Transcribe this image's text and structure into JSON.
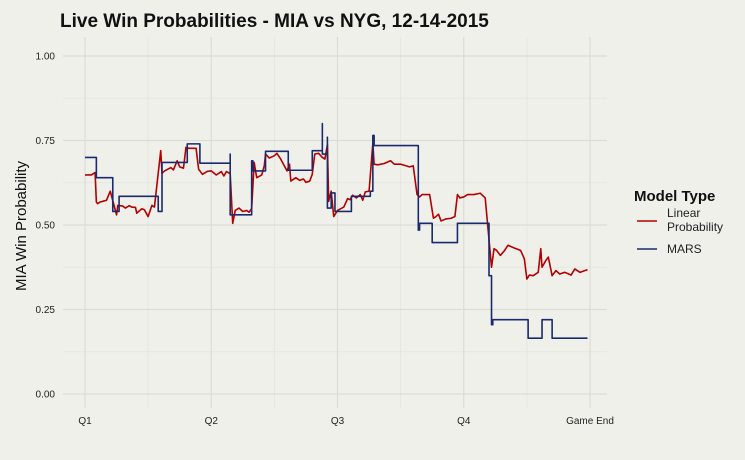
{
  "chart_data": {
    "type": "line",
    "title": "Live Win Probabilities - MIA vs NYG, 12-14-2015",
    "xlabel": "",
    "ylabel": "MIA Win Probability",
    "xlim": [
      0,
      4
    ],
    "ylim": [
      0,
      1
    ],
    "x_ticks": [
      {
        "value": 0,
        "label": "Q1"
      },
      {
        "value": 1,
        "label": "Q2"
      },
      {
        "value": 2,
        "label": "Q3"
      },
      {
        "value": 3,
        "label": "Q4"
      },
      {
        "value": 4,
        "label": "Game End"
      }
    ],
    "y_ticks": [
      {
        "value": 0,
        "label": "0.00"
      },
      {
        "value": 0.25,
        "label": "0.25"
      },
      {
        "value": 0.5,
        "label": "0.50"
      },
      {
        "value": 0.75,
        "label": "0.75"
      },
      {
        "value": 1,
        "label": "1.00"
      }
    ],
    "grid": true,
    "legend": {
      "title": "Model Type",
      "position": "right"
    },
    "series": [
      {
        "name": "Linear Probability",
        "color": "#b30000",
        "step": false,
        "points": [
          [
            0,
            0.648
          ],
          [
            0.05,
            0.648
          ],
          [
            0.08,
            0.655
          ],
          [
            0.09,
            0.568
          ],
          [
            0.1,
            0.563
          ],
          [
            0.12,
            0.568
          ],
          [
            0.17,
            0.573
          ],
          [
            0.2,
            0.6
          ],
          [
            0.25,
            0.53
          ],
          [
            0.26,
            0.558
          ],
          [
            0.3,
            0.556
          ],
          [
            0.32,
            0.55
          ],
          [
            0.35,
            0.557
          ],
          [
            0.37,
            0.553
          ],
          [
            0.4,
            0.552
          ],
          [
            0.41,
            0.535
          ],
          [
            0.45,
            0.548
          ],
          [
            0.47,
            0.545
          ],
          [
            0.5,
            0.525
          ],
          [
            0.53,
            0.558
          ],
          [
            0.55,
            0.553
          ],
          [
            0.6,
            0.72
          ],
          [
            0.61,
            0.653
          ],
          [
            0.63,
            0.66
          ],
          [
            0.68,
            0.67
          ],
          [
            0.7,
            0.663
          ],
          [
            0.73,
            0.69
          ],
          [
            0.75,
            0.672
          ],
          [
            0.78,
            0.668
          ],
          [
            0.8,
            0.73
          ],
          [
            0.82,
            0.727
          ],
          [
            0.88,
            0.727
          ],
          [
            0.9,
            0.665
          ],
          [
            0.93,
            0.65
          ],
          [
            0.97,
            0.659
          ],
          [
            1.0,
            0.66
          ],
          [
            1.04,
            0.648
          ],
          [
            1.08,
            0.658
          ],
          [
            1.1,
            0.645
          ],
          [
            1.12,
            0.658
          ],
          [
            1.15,
            0.652
          ],
          [
            1.17,
            0.505
          ],
          [
            1.19,
            0.543
          ],
          [
            1.22,
            0.55
          ],
          [
            1.25,
            0.54
          ],
          [
            1.28,
            0.543
          ],
          [
            1.3,
            0.538
          ],
          [
            1.32,
            0.548
          ],
          [
            1.34,
            0.685
          ],
          [
            1.36,
            0.64
          ],
          [
            1.4,
            0.648
          ],
          [
            1.42,
            0.675
          ],
          [
            1.43,
            0.71
          ],
          [
            1.46,
            0.698
          ],
          [
            1.5,
            0.705
          ],
          [
            1.52,
            0.712
          ],
          [
            1.55,
            0.695
          ],
          [
            1.6,
            0.66
          ],
          [
            1.62,
            0.68
          ],
          [
            1.63,
            0.63
          ],
          [
            1.67,
            0.64
          ],
          [
            1.7,
            0.632
          ],
          [
            1.73,
            0.636
          ],
          [
            1.75,
            0.626
          ],
          [
            1.78,
            0.63
          ],
          [
            1.8,
            0.65
          ],
          [
            1.82,
            0.71
          ],
          [
            1.85,
            0.712
          ],
          [
            1.88,
            0.7
          ],
          [
            1.9,
            0.695
          ],
          [
            1.92,
            0.738
          ],
          [
            1.93,
            0.57
          ],
          [
            1.95,
            0.6
          ],
          [
            1.97,
            0.525
          ],
          [
            2.0,
            0.543
          ],
          [
            2.05,
            0.553
          ],
          [
            2.08,
            0.578
          ],
          [
            2.1,
            0.575
          ],
          [
            2.12,
            0.588
          ],
          [
            2.15,
            0.58
          ],
          [
            2.18,
            0.59
          ],
          [
            2.2,
            0.573
          ],
          [
            2.22,
            0.598
          ],
          [
            2.25,
            0.6
          ],
          [
            2.28,
            0.742
          ],
          [
            2.29,
            0.68
          ],
          [
            2.32,
            0.678
          ],
          [
            2.37,
            0.682
          ],
          [
            2.42,
            0.69
          ],
          [
            2.45,
            0.68
          ],
          [
            2.5,
            0.68
          ],
          [
            2.57,
            0.672
          ],
          [
            2.6,
            0.675
          ],
          [
            2.63,
            0.59
          ],
          [
            2.65,
            0.583
          ],
          [
            2.67,
            0.59
          ],
          [
            2.7,
            0.59
          ],
          [
            2.73,
            0.59
          ],
          [
            2.76,
            0.52
          ],
          [
            2.78,
            0.525
          ],
          [
            2.8,
            0.532
          ],
          [
            2.82,
            0.512
          ],
          [
            2.86,
            0.518
          ],
          [
            2.9,
            0.52
          ],
          [
            2.93,
            0.525
          ],
          [
            2.95,
            0.59
          ],
          [
            2.97,
            0.58
          ],
          [
            3.0,
            0.583
          ],
          [
            3.03,
            0.59
          ],
          [
            3.08,
            0.59
          ],
          [
            3.13,
            0.594
          ],
          [
            3.17,
            0.58
          ],
          [
            3.22,
            0.375
          ],
          [
            3.24,
            0.43
          ],
          [
            3.26,
            0.425
          ],
          [
            3.29,
            0.41
          ],
          [
            3.32,
            0.423
          ],
          [
            3.35,
            0.44
          ],
          [
            3.4,
            0.432
          ],
          [
            3.45,
            0.425
          ],
          [
            3.48,
            0.4
          ],
          [
            3.5,
            0.34
          ],
          [
            3.52,
            0.352
          ],
          [
            3.55,
            0.35
          ],
          [
            3.59,
            0.36
          ],
          [
            3.61,
            0.43
          ],
          [
            3.62,
            0.375
          ],
          [
            3.65,
            0.395
          ],
          [
            3.67,
            0.405
          ],
          [
            3.7,
            0.35
          ],
          [
            3.73,
            0.365
          ],
          [
            3.76,
            0.355
          ],
          [
            3.8,
            0.36
          ],
          [
            3.85,
            0.352
          ],
          [
            3.88,
            0.37
          ],
          [
            3.92,
            0.36
          ],
          [
            3.98,
            0.368
          ]
        ]
      },
      {
        "name": "MARS",
        "color": "#1a2a6c",
        "step": true,
        "points": [
          [
            0,
            0.7
          ],
          [
            0.08,
            0.7
          ],
          [
            0.09,
            0.64
          ],
          [
            0.2,
            0.64
          ],
          [
            0.22,
            0.54
          ],
          [
            0.26,
            0.54
          ],
          [
            0.27,
            0.585
          ],
          [
            0.57,
            0.585
          ],
          [
            0.58,
            0.54
          ],
          [
            0.6,
            0.54
          ],
          [
            0.61,
            0.685
          ],
          [
            0.8,
            0.685
          ],
          [
            0.81,
            0.74
          ],
          [
            0.9,
            0.74
          ],
          [
            0.91,
            0.683
          ],
          [
            1.14,
            0.683
          ],
          [
            1.15,
            0.71
          ],
          [
            1.15,
            0.53
          ],
          [
            1.32,
            0.53
          ],
          [
            1.32,
            0.69
          ],
          [
            1.33,
            0.66
          ],
          [
            1.42,
            0.66
          ],
          [
            1.43,
            0.718
          ],
          [
            1.6,
            0.718
          ],
          [
            1.61,
            0.662
          ],
          [
            1.79,
            0.662
          ],
          [
            1.8,
            0.72
          ],
          [
            1.87,
            0.72
          ],
          [
            1.88,
            0.8
          ],
          [
            1.88,
            0.71
          ],
          [
            1.91,
            0.71
          ],
          [
            1.92,
            0.76
          ],
          [
            1.92,
            0.55
          ],
          [
            1.95,
            0.595
          ],
          [
            1.97,
            0.595
          ],
          [
            1.98,
            0.54
          ],
          [
            2.1,
            0.54
          ],
          [
            2.11,
            0.585
          ],
          [
            2.25,
            0.585
          ],
          [
            2.26,
            0.6
          ],
          [
            2.27,
            0.6
          ],
          [
            2.28,
            0.765
          ],
          [
            2.29,
            0.735
          ],
          [
            2.63,
            0.735
          ],
          [
            2.64,
            0.485
          ],
          [
            2.65,
            0.505
          ],
          [
            2.74,
            0.505
          ],
          [
            2.75,
            0.448
          ],
          [
            2.94,
            0.448
          ],
          [
            2.95,
            0.505
          ],
          [
            3.19,
            0.505
          ],
          [
            3.2,
            0.35
          ],
          [
            3.22,
            0.205
          ],
          [
            3.23,
            0.22
          ],
          [
            3.5,
            0.22
          ],
          [
            3.51,
            0.165
          ],
          [
            3.61,
            0.165
          ],
          [
            3.62,
            0.22
          ],
          [
            3.69,
            0.22
          ],
          [
            3.7,
            0.165
          ],
          [
            3.98,
            0.165
          ]
        ]
      }
    ]
  }
}
